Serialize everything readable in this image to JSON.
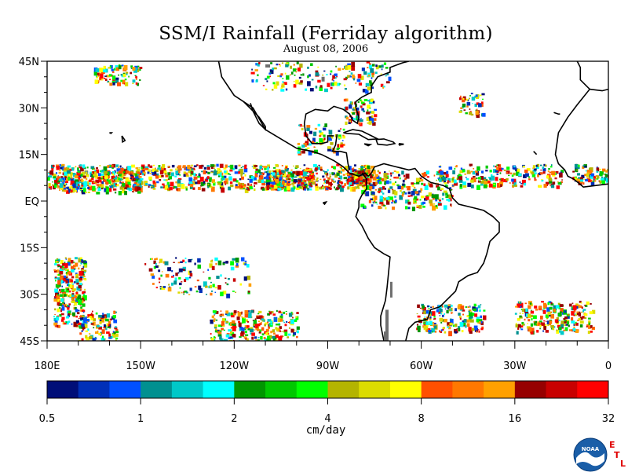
{
  "map": {
    "title": "SSM/I Rainfall (Ferriday algorithm)",
    "subtitle": "August 08, 2006",
    "lat_labels": [
      "45N",
      "30N",
      "15N",
      "EQ",
      "15S",
      "30S",
      "45S"
    ],
    "lon_labels": [
      "180E",
      "150W",
      "120W",
      "90W",
      "60W",
      "30W",
      "0"
    ],
    "lat_values": [
      45,
      30,
      15,
      0,
      -15,
      -30,
      -45
    ],
    "lon_values": [
      -180,
      -150,
      -120,
      -90,
      -60,
      -30,
      0
    ],
    "extent": {
      "lon": [
        -180,
        0
      ],
      "lat": [
        -45,
        45
      ]
    },
    "coastline_color": "#000000",
    "land_color": "#ffffff"
  },
  "colorbar": {
    "colors": [
      "#000e78",
      "#0030b8",
      "#0050ff",
      "#009090",
      "#00c8c8",
      "#00ffff",
      "#009600",
      "#00c800",
      "#00ff00",
      "#b4b400",
      "#dcdc00",
      "#ffff00",
      "#ff5000",
      "#ff7800",
      "#ffa000",
      "#960000",
      "#c80000",
      "#ff0000"
    ],
    "tick_labels": [
      "0.5",
      "1",
      "2",
      "4",
      "8",
      "16",
      "32"
    ],
    "units": "cm/day"
  },
  "branding": {
    "logo_text": "NOAA",
    "etl_letters": [
      "E",
      "T",
      "L"
    ]
  }
}
